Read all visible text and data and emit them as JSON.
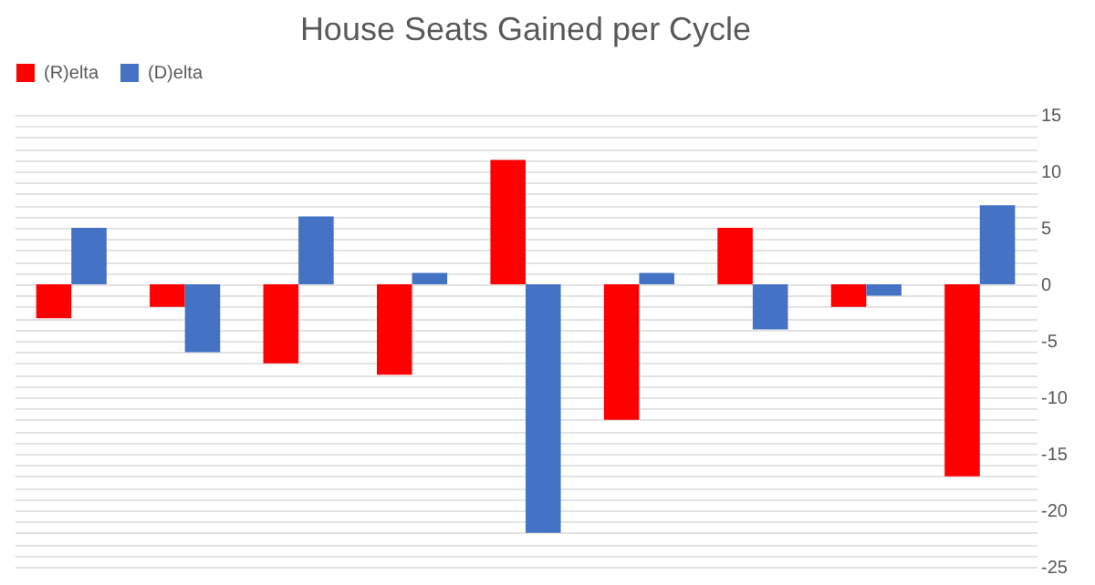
{
  "chart_data": {
    "type": "bar",
    "title": "House Seats Gained per Cycle",
    "categories": [
      null,
      null,
      null,
      null,
      null,
      null,
      null,
      null,
      null
    ],
    "series": [
      {
        "name": "(R)elta",
        "color": "#ff0000",
        "values": [
          -3,
          -2,
          -7,
          -8,
          11,
          -12,
          5,
          -2,
          -17
        ]
      },
      {
        "name": "(D)elta",
        "color": "#4472c4",
        "values": [
          5,
          -6,
          6,
          1,
          -22,
          1,
          -4,
          -1,
          7
        ]
      }
    ],
    "ylim": [
      -25,
      15
    ],
    "yticks": [
      -25,
      {
        "value": -24,
        "label": null
      },
      {
        "value": -23,
        "label": null
      },
      {
        "value": -22,
        "label": null
      },
      {
        "value": -21,
        "label": null
      },
      -20,
      {
        "value": -19,
        "label": null
      },
      {
        "value": -18,
        "label": null
      },
      {
        "value": -17,
        "label": null
      },
      {
        "value": -16,
        "label": null
      },
      -15,
      {
        "value": -14,
        "label": null
      },
      {
        "value": -13,
        "label": null
      },
      {
        "value": -12,
        "label": null
      },
      {
        "value": -11,
        "label": null
      },
      -10,
      {
        "value": -9,
        "label": null
      },
      {
        "value": -8,
        "label": null
      },
      {
        "value": -7,
        "label": null
      },
      {
        "value": -6,
        "label": null
      },
      -5,
      {
        "value": -4,
        "label": null
      },
      {
        "value": -3,
        "label": null
      },
      {
        "value": -2,
        "label": null
      },
      {
        "value": -1,
        "label": null
      },
      0,
      {
        "value": 1,
        "label": null
      },
      {
        "value": 2,
        "label": null
      },
      {
        "value": 3,
        "label": null
      },
      {
        "value": 4,
        "label": null
      },
      5,
      {
        "value": 6,
        "label": null
      },
      {
        "value": 7,
        "label": null
      },
      {
        "value": 8,
        "label": null
      },
      {
        "value": 9,
        "label": null
      },
      10,
      {
        "value": 11,
        "label": null
      },
      {
        "value": 12,
        "label": null
      },
      {
        "value": 13,
        "label": null
      },
      {
        "value": 14,
        "label": null
      },
      15
    ],
    "grid": "y",
    "legend": "top",
    "tick_labels": "y"
  }
}
